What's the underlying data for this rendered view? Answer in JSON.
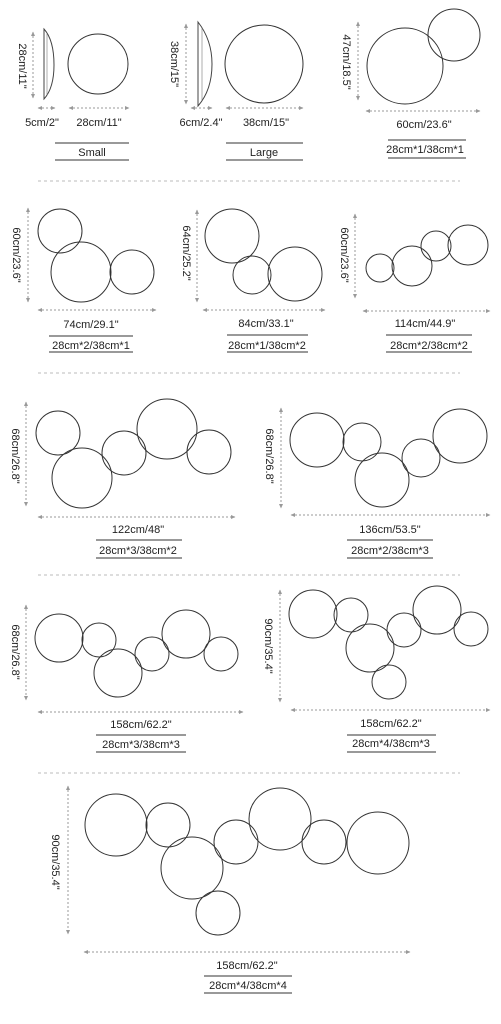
{
  "panels": {
    "small": {
      "height": "28cm/11\"",
      "depth": "5cm/2\"",
      "diameter": "28cm/11\"",
      "label": "Small"
    },
    "large": {
      "height": "38cm/15\"",
      "depth": "6cm/2.4\"",
      "diameter": "38cm/15\"",
      "label": "Large"
    },
    "c1": {
      "height": "47cm/18.5\"",
      "width": "60cm/23.6\"",
      "label": "28cm*1/38cm*1"
    },
    "c2": {
      "height": "60cm/23.6\"",
      "width": "74cm/29.1\"",
      "label": "28cm*2/38cm*1"
    },
    "c3": {
      "height": "64cm/25.2\"",
      "width": "84cm/33.1\"",
      "label": "28cm*1/38cm*2"
    },
    "c4": {
      "height": "60cm/23.6\"",
      "width": "114cm/44.9\"",
      "label": "28cm*2/38cm*2"
    },
    "c5": {
      "height": "68cm/26.8\"",
      "width": "122cm/48\"",
      "label": "28cm*3/38cm*2"
    },
    "c6": {
      "height": "68cm/26.8\"",
      "width": "136cm/53.5\"",
      "label": "28cm*2/38cm*3"
    },
    "c7": {
      "height": "68cm/26.8\"",
      "width": "158cm/62.2\"",
      "label": "28cm*3/38cm*3"
    },
    "c8": {
      "height": "90cm/35.4\"",
      "width": "158cm/62.2\"",
      "label": "28cm*4/38cm*3"
    },
    "c9": {
      "height": "90cm/35.4\"",
      "width": "158cm/62.2\"",
      "label": "28cm*4/38cm*4"
    }
  }
}
